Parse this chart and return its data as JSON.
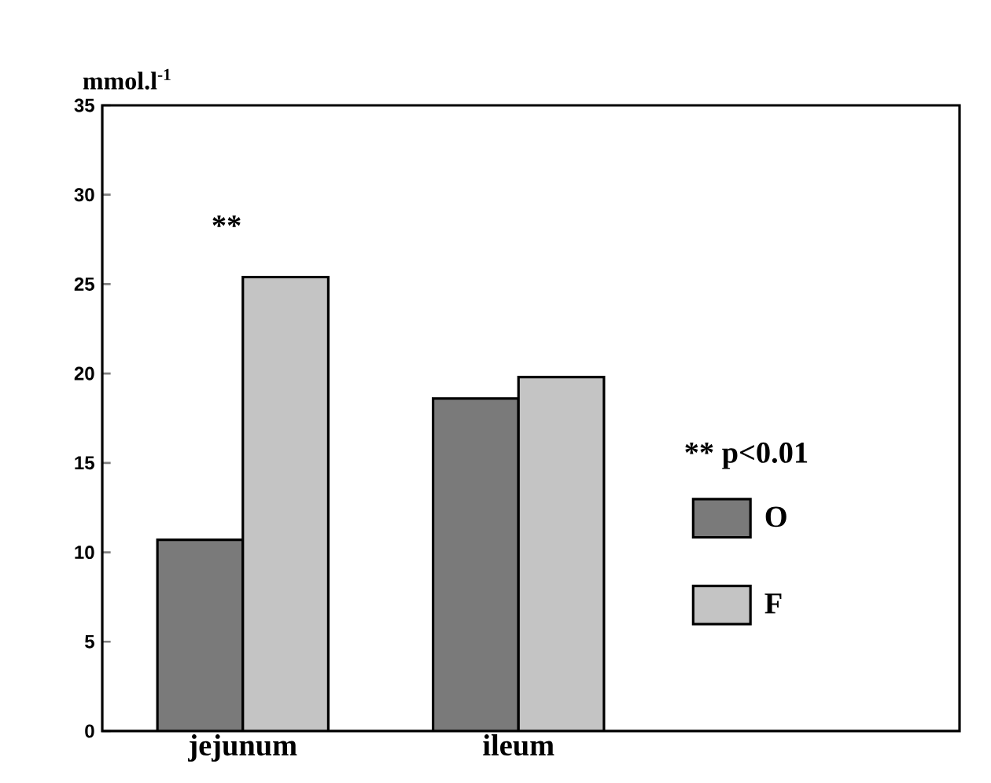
{
  "chart_data": {
    "type": "bar",
    "ylabel": "mmol.l$^{-1}$",
    "categories": [
      "jejunum",
      "ileum"
    ],
    "series": [
      {
        "name": "O",
        "color": "#7a7a7a",
        "values": [
          10.7,
          18.6
        ]
      },
      {
        "name": "F",
        "color": "#c4c4c4",
        "values": [
          25.4,
          19.8
        ]
      }
    ],
    "ylim": [
      0,
      35
    ],
    "yticks": [
      0,
      5,
      10,
      15,
      20,
      25,
      30,
      35
    ],
    "legend": "right",
    "annotations": [
      "**",
      "** p<0.01"
    ]
  }
}
